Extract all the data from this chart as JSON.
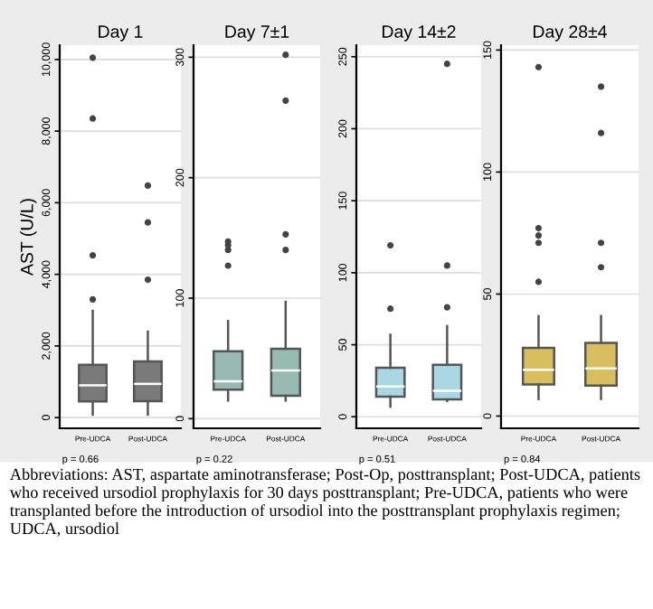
{
  "chart_data": [
    {
      "type": "box",
      "title": "Day 1",
      "ylabel": "AST (U/L)",
      "categories": [
        "Pre-UDCA",
        "Post-UDCA"
      ],
      "color": "#7a7a7a",
      "ylim": [
        -300,
        10400
      ],
      "yticks": [
        0,
        {
          "value": 2000,
          "label": "2,000"
        },
        {
          "value": 4000,
          "label": "4,000"
        },
        {
          "value": 6000,
          "label": "6,000"
        },
        {
          "value": 8000,
          "label": "8,000"
        },
        {
          "value": 10000,
          "label": "10,000"
        }
      ],
      "grid": "y",
      "boxes": [
        {
          "low": 80,
          "q1": 450,
          "median": 900,
          "q3": 1470,
          "high": 2980,
          "outliers": [
            3300,
            4530,
            8350,
            10050
          ]
        },
        {
          "low": 80,
          "q1": 460,
          "median": 940,
          "q3": 1570,
          "high": 2400,
          "outliers": [
            3850,
            5450,
            6480
          ]
        }
      ],
      "annotations": [
        "p = 0.66",
        "Abbreviations: AST, aspartate aminotransferase; Post-Op, posttransplant; Post-UDCA, patients who received ursodiol prophylaxis for 30 days posttransplant; Pre-UDCA, patients who were transplanted before the introduction of ursodiol into the posttransplant prophylaxis regimen; UDCA, ursodiol"
      ]
    },
    {
      "type": "box",
      "title": "Day 7±1",
      "categories": [
        "Pre-UDCA",
        "Post-UDCA"
      ],
      "color": "#96b9b0",
      "ylim": [
        -8,
        310
      ],
      "yticks": [
        0,
        100,
        200,
        300
      ],
      "grid": "y",
      "boxes": [
        {
          "low": 15,
          "q1": 24,
          "median": 31,
          "q3": 56,
          "high": 81,
          "outliers": [
            127,
            140,
            144,
            147
          ]
        },
        {
          "low": 15,
          "q1": 19,
          "median": 40,
          "q3": 58,
          "high": 97,
          "outliers": [
            140,
            153,
            264,
            302
          ]
        }
      ],
      "annotations": [
        "p = 0.22"
      ]
    },
    {
      "type": "box",
      "title": "Day 14±2",
      "categories": [
        "Pre-UDCA",
        "Post-UDCA"
      ],
      "color": "#a9d7e3",
      "ylim": [
        -8,
        258
      ],
      "yticks": [
        0,
        50,
        100,
        150,
        200,
        250
      ],
      "grid": "y",
      "boxes": [
        {
          "low": 7,
          "q1": 14,
          "median": 21,
          "q3": 34,
          "high": 57,
          "outliers": [
            75,
            119
          ]
        },
        {
          "low": 11,
          "q1": 12,
          "median": 18,
          "q3": 36,
          "high": 63,
          "outliers": [
            76,
            105,
            245
          ]
        }
      ],
      "annotations": [
        "p = 0.51"
      ]
    },
    {
      "type": "box",
      "title": "Day 28±4",
      "categories": [
        "Pre-UDCA",
        "Post-UDCA"
      ],
      "color": "#d8be5e",
      "ylim": [
        -5,
        152
      ],
      "yticks": [
        0,
        50,
        100,
        150
      ],
      "grid": "y",
      "boxes": [
        {
          "low": 7,
          "q1": 13,
          "median": 19,
          "q3": 28,
          "high": 41,
          "outliers": [
            55,
            71,
            74,
            77,
            143
          ]
        },
        {
          "low": 7,
          "q1": 12.5,
          "median": 19.5,
          "q3": 30,
          "high": 41,
          "outliers": [
            61,
            71,
            116,
            135
          ]
        }
      ],
      "annotations": [
        "p = 0.84"
      ]
    }
  ]
}
